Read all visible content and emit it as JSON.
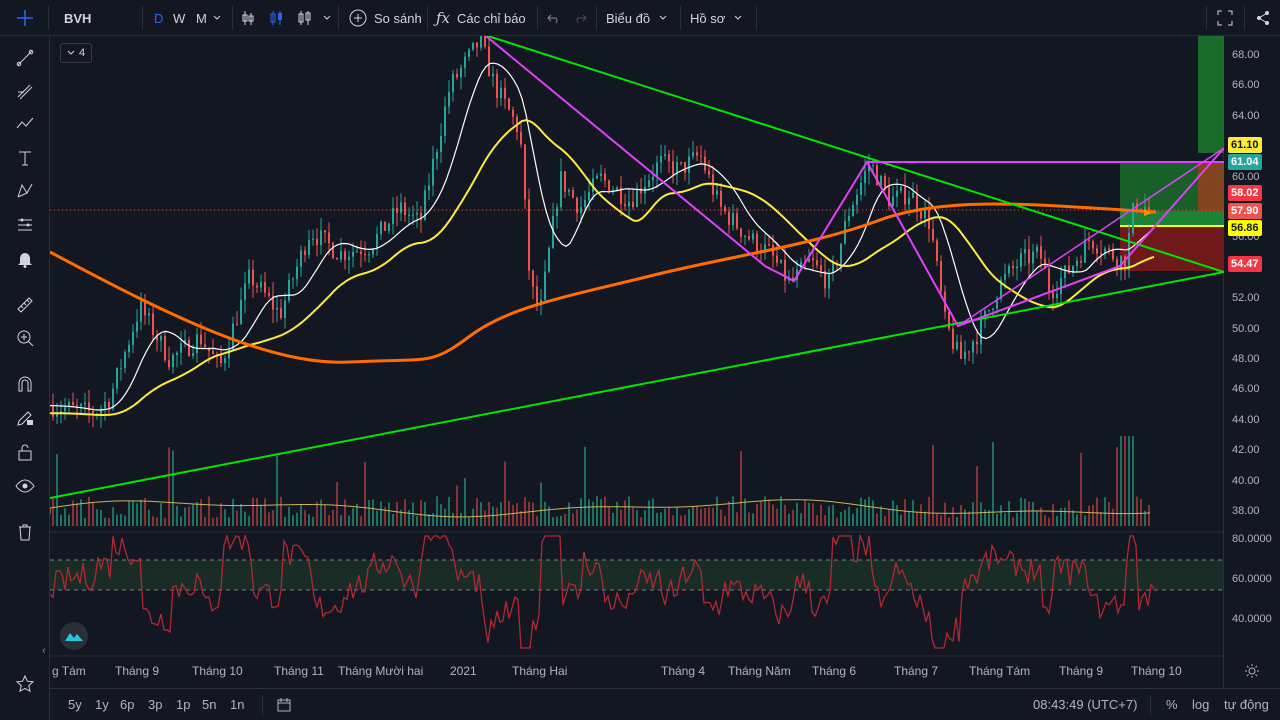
{
  "toolbar": {
    "symbol": "BVH",
    "interval_d": "D",
    "interval_w": "W",
    "interval_m": "M",
    "compare_label": "So sánh",
    "indicators_label": "Các chỉ báo",
    "chart_menu_label": "Biểu đồ",
    "profile_menu_label": "Hồ sơ"
  },
  "legend": {
    "collapse_count": "4"
  },
  "price_axis": [
    "68.00",
    "66.00",
    "64.00",
    "62.00",
    "60.00",
    "56.00",
    "52.00",
    "50.00",
    "48.00",
    "46.00",
    "44.00",
    "42.00",
    "40.00",
    "38.00"
  ],
  "price_tags": [
    {
      "label": "61.10",
      "bg": "#ffeb3b",
      "fg": "#131722"
    },
    {
      "label": "61.04",
      "bg": "#26a69a",
      "fg": "#ffffff"
    },
    {
      "label": "58.02",
      "bg": "#f23645",
      "fg": "#ffffff"
    },
    {
      "label": "57.90",
      "bg": "#ef5350",
      "fg": "#ffffff"
    },
    {
      "label": "56.86",
      "bg": "#ffff00",
      "fg": "#131722"
    },
    {
      "label": "54.47",
      "bg": "#f23645",
      "fg": "#ffffff"
    }
  ],
  "rsi_axis": [
    "80.0000",
    "60.0000",
    "40.0000"
  ],
  "time_axis": [
    "g Tám",
    "Tháng 9",
    "Tháng 10",
    "Tháng 11",
    "Tháng Mười hai",
    "2021",
    "Tháng Hai",
    "Tháng 4",
    "Tháng Năm",
    "Tháng 6",
    "Tháng 7",
    "Tháng Tám",
    "Tháng 9",
    "Tháng 10"
  ],
  "bottom": {
    "ranges": [
      "5y",
      "1y",
      "6p",
      "3p",
      "1p",
      "5n",
      "1n"
    ],
    "clock": "08:43:49 (UTC+7)",
    "percent": "%",
    "log": "log",
    "auto": "tự động"
  },
  "colors": {
    "background": "#131722",
    "up": "#26a69a",
    "down": "#ef5350",
    "ma_fast": "#ffffff",
    "ma_mid": "#ffeb3b",
    "ma_slow": "#ff6d00",
    "triangle": "#00e600",
    "zigzag": "#e040fb",
    "rsi": "#b22833"
  },
  "icons": [
    "crosshair-icon",
    "trendline-icon",
    "fib-icon",
    "pattern-icon",
    "text-icon",
    "xabcd-icon",
    "measure-icon",
    "alert-icon",
    "ruler-icon",
    "zoom-icon",
    "magnet-icon",
    "lock-draw-icon",
    "unlock-icon",
    "eye-icon",
    "trash-icon",
    "star-icon"
  ]
}
